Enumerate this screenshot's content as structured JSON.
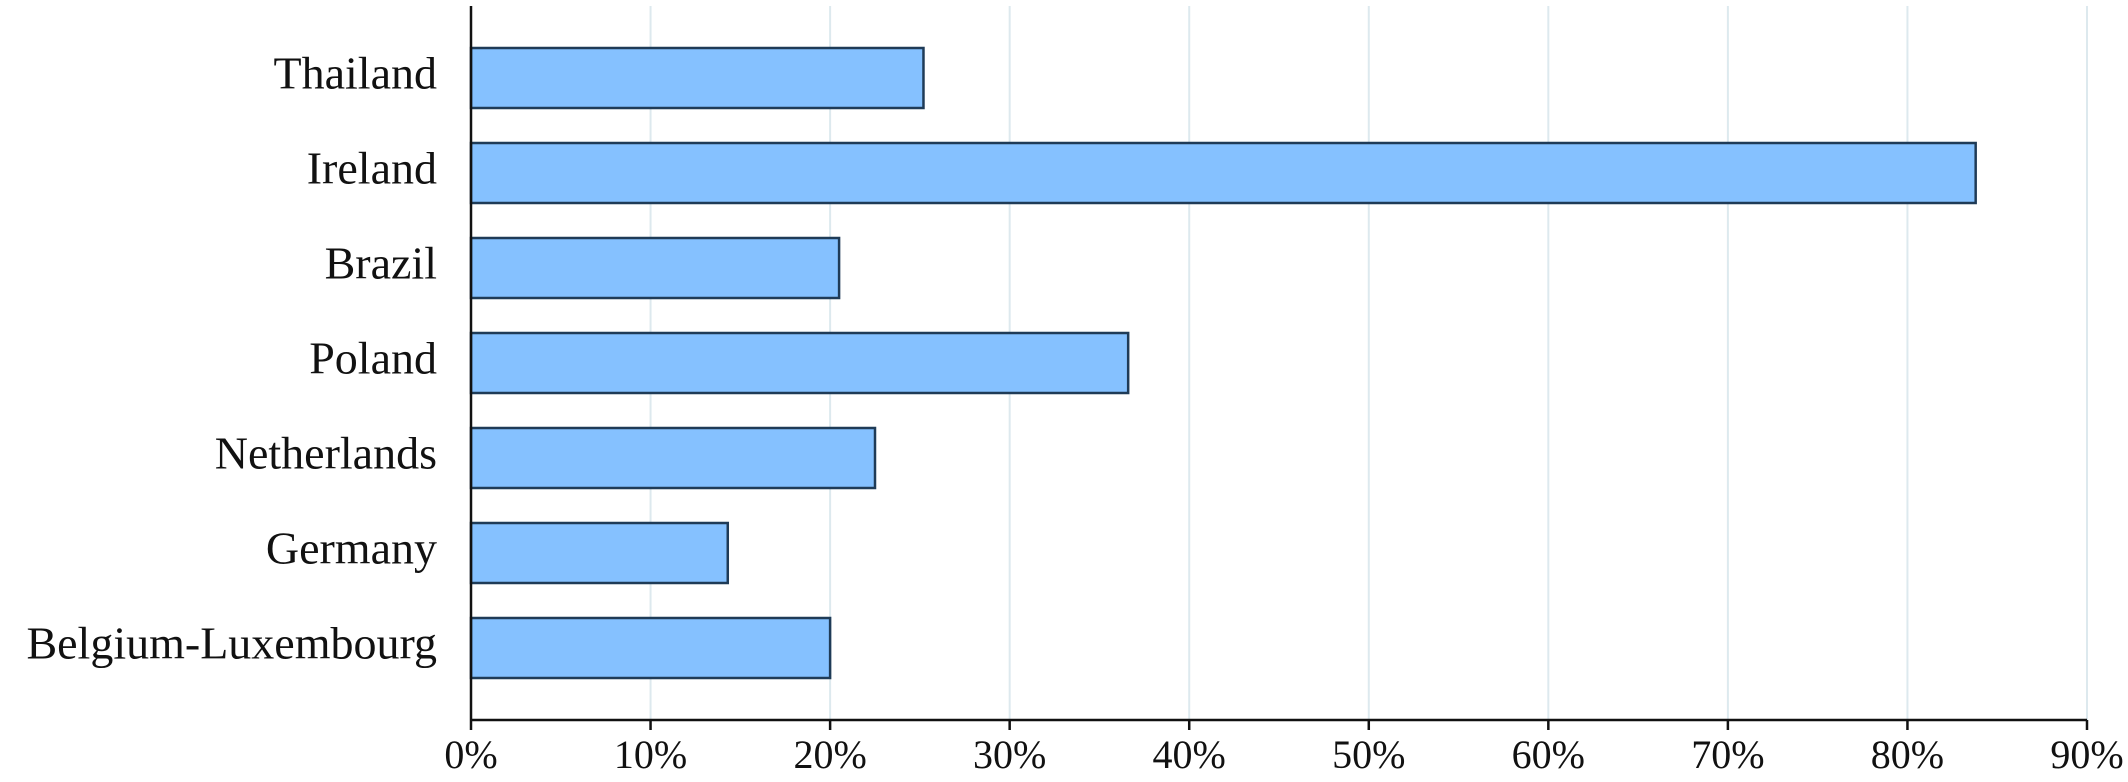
{
  "chart_data": {
    "type": "bar",
    "orientation": "horizontal",
    "categories": [
      "Thailand",
      "Ireland",
      "Brazil",
      "Poland",
      "Netherlands",
      "Germany",
      "Belgium-Luxembourg"
    ],
    "values": [
      25.2,
      83.8,
      20.5,
      36.6,
      22.5,
      14.3,
      20.0
    ],
    "xlim": [
      0,
      90
    ],
    "xticks": [
      0,
      10,
      20,
      30,
      40,
      50,
      60,
      70,
      80,
      90
    ],
    "xtick_labels": [
      "0%",
      "10%",
      "20%",
      "30%",
      "40%",
      "50%",
      "60%",
      "70%",
      "80%",
      "90%"
    ],
    "title": "",
    "xlabel": "",
    "ylabel": "",
    "grid": "vertical",
    "legend": "none",
    "colors": {
      "bar_fill": "#85c1ff",
      "bar_stroke": "#1f3b57",
      "grid": "#dde9ee",
      "axis": "#111111",
      "text": "#111111"
    }
  }
}
